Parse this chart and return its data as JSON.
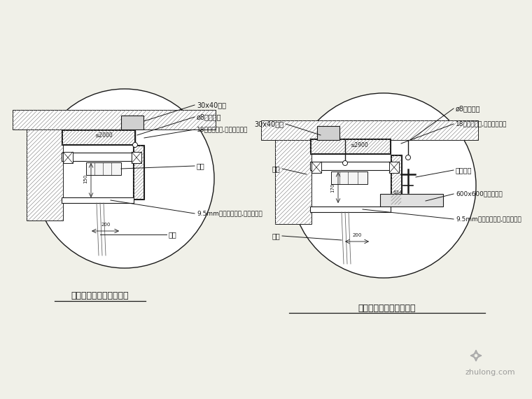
{
  "bg_color": "#f0f0e8",
  "line_color": "#1a1a1a",
  "title1": "石膏板吊顶窗帘盒剖面图",
  "title2": "矿棉板吊顶窗帘盒剖面图",
  "watermark": "zhulong.com"
}
